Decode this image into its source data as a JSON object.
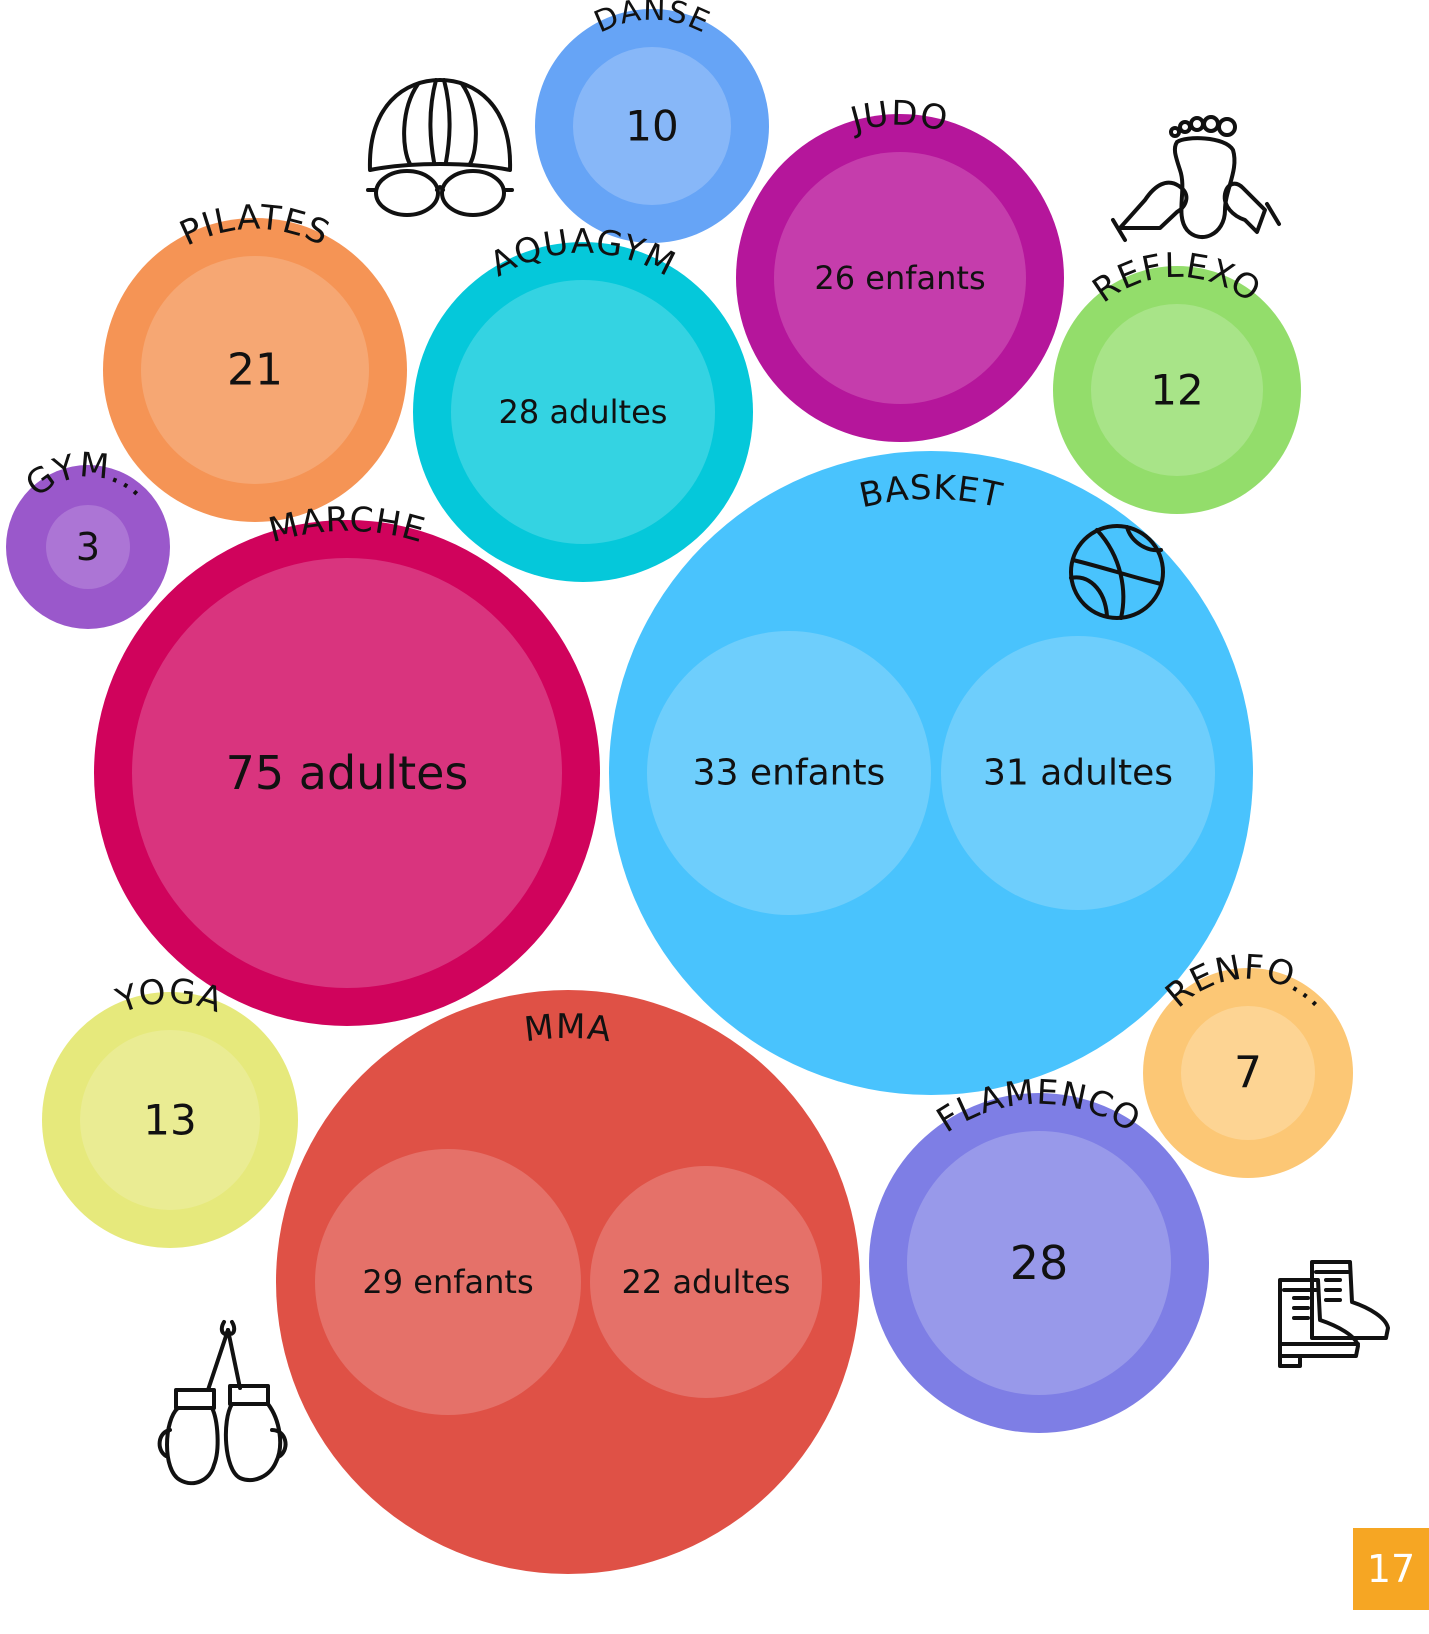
{
  "page_number": "17",
  "page_number_color": "#F6A623",
  "icons": [
    "swim-cap-goggles-icon",
    "foot-massage-icon",
    "basketball-icon",
    "boxing-gloves-icon",
    "dance-boots-icon"
  ],
  "chart_data": {
    "type": "bubble",
    "title": "",
    "bubbles": [
      {
        "id": "danse",
        "name": "DANSE",
        "items": [
          {
            "label": "10",
            "value": 10
          }
        ],
        "outer_color": "#66A4F6",
        "inner_color": "#87B7F8"
      },
      {
        "id": "judo",
        "name": "JUDO",
        "items": [
          {
            "label": "26 enfants",
            "value": 26
          }
        ],
        "outer_color": "#B5169B",
        "inner_color": "#C53DAC"
      },
      {
        "id": "pilates",
        "name": "PILATES",
        "items": [
          {
            "label": "21",
            "value": 21
          }
        ],
        "outer_color": "#F59455",
        "inner_color": "#F6A773"
      },
      {
        "id": "aquagym",
        "name": "AQUAGYM",
        "items": [
          {
            "label": "28 adultes",
            "value": 28
          }
        ],
        "outer_color": "#05C8DA",
        "inner_color": "#34D3E2"
      },
      {
        "id": "reflexo",
        "name": "REFLEXO",
        "items": [
          {
            "label": "12",
            "value": 12
          }
        ],
        "outer_color": "#93DD6B",
        "inner_color": "#A8E488"
      },
      {
        "id": "gym",
        "name": "GYM...",
        "items": [
          {
            "label": "3",
            "value": 3
          }
        ],
        "outer_color": "#9A58CB",
        "inner_color": "#AC75D5"
      },
      {
        "id": "marche",
        "name": "MARCHE",
        "items": [
          {
            "label": "75 adultes",
            "value": 75
          }
        ],
        "outer_color": "#D0035C",
        "inner_color": "#D9347E"
      },
      {
        "id": "basket",
        "name": "BASKET",
        "items": [
          {
            "label": "33 enfants",
            "value": 33
          },
          {
            "label": "31 adultes",
            "value": 31
          }
        ],
        "outer_color": "#49C3FD",
        "inner_color": "#6ECEFC"
      },
      {
        "id": "yoga",
        "name": "YOGA",
        "items": [
          {
            "label": "13",
            "value": 13
          }
        ],
        "outer_color": "#E6E97C",
        "inner_color": "#EAEC93"
      },
      {
        "id": "mma",
        "name": "MMA",
        "items": [
          {
            "label": "29 enfants",
            "value": 29
          },
          {
            "label": "22 adultes",
            "value": 22
          }
        ],
        "outer_color": "#DF5146",
        "inner_color": "#E57169"
      },
      {
        "id": "renfo",
        "name": "RENFO...",
        "items": [
          {
            "label": "7",
            "value": 7
          }
        ],
        "outer_color": "#FCC775",
        "inner_color": "#FDD493"
      },
      {
        "id": "flamenco",
        "name": "FLAMENCO",
        "items": [
          {
            "label": "28",
            "value": 28
          }
        ],
        "outer_color": "#7E7EE5",
        "inner_color": "#9899EA"
      }
    ]
  }
}
